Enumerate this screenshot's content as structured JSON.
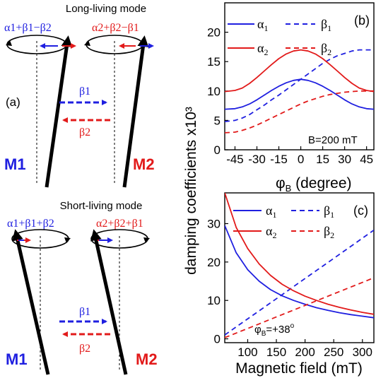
{
  "colors": {
    "blue": "#1f1fe0",
    "red": "#e21a1a",
    "black": "#000000"
  },
  "schematic": {
    "long_title": "Long-living mode",
    "short_title": "Short-living mode",
    "panel_label": "(a)",
    "long_m1_combo": "α1+β1−β2",
    "long_m2_combo": "α2+β2−β1",
    "short_m1_combo": "α1+β1+β2",
    "short_m2_combo": "α2+β2+β1",
    "beta1": "β1",
    "beta2": "β2",
    "m1": "M1",
    "m2": "M2"
  },
  "shared_ylabel": "damping coefficients  x10³",
  "chart_data": [
    {
      "type": "line",
      "panel_label": "(b)",
      "annotation": "B=200 mT",
      "xlabel": "φB (degree)",
      "xlim": [
        -52,
        50
      ],
      "ylim": [
        0,
        25
      ],
      "xticks": [
        -45,
        -30,
        -15,
        0,
        15,
        30,
        45
      ],
      "xtick_labels": [
        "-45",
        "-30",
        "-15",
        "0",
        "15",
        "30",
        "45"
      ],
      "yticks": [
        0,
        5,
        10,
        15,
        20
      ],
      "x": [
        -52,
        -45,
        -40,
        -35,
        -30,
        -25,
        -20,
        -15,
        -10,
        -5,
        0,
        5,
        10,
        15,
        20,
        25,
        30,
        35,
        40,
        45,
        50
      ],
      "series": [
        {
          "name": "α1",
          "color": "#1f1fe0",
          "dash": false,
          "values": [
            6.9,
            7.0,
            7.3,
            7.8,
            8.5,
            9.3,
            10.1,
            10.8,
            11.4,
            11.8,
            12.0,
            11.8,
            11.4,
            10.8,
            10.1,
            9.3,
            8.5,
            7.8,
            7.3,
            7.0,
            6.9
          ]
        },
        {
          "name": "β1",
          "color": "#1f1fe0",
          "dash": true,
          "values": [
            4.8,
            5.0,
            5.4,
            6.0,
            6.8,
            7.6,
            8.5,
            9.3,
            10.2,
            11.1,
            12.0,
            12.9,
            13.8,
            14.7,
            15.4,
            16.0,
            16.4,
            16.8,
            17.0,
            17.0,
            17.0
          ]
        },
        {
          "name": "α2",
          "color": "#e21a1a",
          "dash": false,
          "values": [
            9.9,
            10.1,
            10.5,
            11.3,
            12.3,
            13.4,
            14.5,
            15.5,
            16.3,
            16.8,
            17.0,
            16.8,
            16.3,
            15.5,
            14.5,
            13.4,
            12.3,
            11.3,
            10.5,
            10.1,
            9.9
          ]
        },
        {
          "name": "β2",
          "color": "#e21a1a",
          "dash": true,
          "values": [
            2.9,
            3.0,
            3.3,
            3.7,
            4.2,
            4.8,
            5.4,
            6.0,
            6.6,
            7.2,
            7.8,
            8.3,
            8.7,
            9.1,
            9.4,
            9.6,
            9.8,
            9.9,
            10.0,
            10.0,
            10.0
          ]
        }
      ]
    },
    {
      "type": "line",
      "panel_label": "(c)",
      "annotation": "φB=+38°",
      "xlabel": "Magnetic field (mT)",
      "xlim": [
        60,
        320
      ],
      "ylim": [
        -1,
        38
      ],
      "xticks": [
        100,
        150,
        200,
        250,
        300
      ],
      "xtick_labels": [
        "100",
        "150",
        "200",
        "250",
        "300"
      ],
      "yticks": [
        0,
        10,
        20,
        30
      ],
      "x": [
        60,
        80,
        100,
        120,
        140,
        160,
        180,
        200,
        220,
        240,
        260,
        280,
        300,
        320
      ],
      "series": [
        {
          "name": "α1",
          "color": "#1f1fe0",
          "dash": false,
          "values": [
            29.5,
            22.4,
            18.0,
            15.0,
            12.8,
            11.2,
            10.0,
            9.0,
            8.1,
            7.4,
            6.8,
            6.3,
            5.9,
            5.5
          ]
        },
        {
          "name": "β1",
          "color": "#1f1fe0",
          "dash": true,
          "values": [
            1.0,
            3.1,
            5.2,
            7.3,
            9.4,
            11.5,
            13.6,
            15.7,
            17.8,
            19.9,
            22.0,
            24.1,
            26.2,
            28.3
          ]
        },
        {
          "name": "α2",
          "color": "#e21a1a",
          "dash": false,
          "values": [
            38.0,
            29.0,
            23.5,
            19.5,
            16.5,
            14.2,
            12.5,
            11.1,
            10.0,
            9.0,
            8.2,
            7.5,
            6.9,
            6.4
          ]
        },
        {
          "name": "β2",
          "color": "#e21a1a",
          "dash": true,
          "values": [
            0.3,
            1.5,
            2.7,
            3.9,
            5.1,
            6.3,
            7.5,
            8.7,
            9.9,
            11.1,
            12.3,
            13.5,
            14.7,
            15.9
          ]
        }
      ]
    }
  ]
}
